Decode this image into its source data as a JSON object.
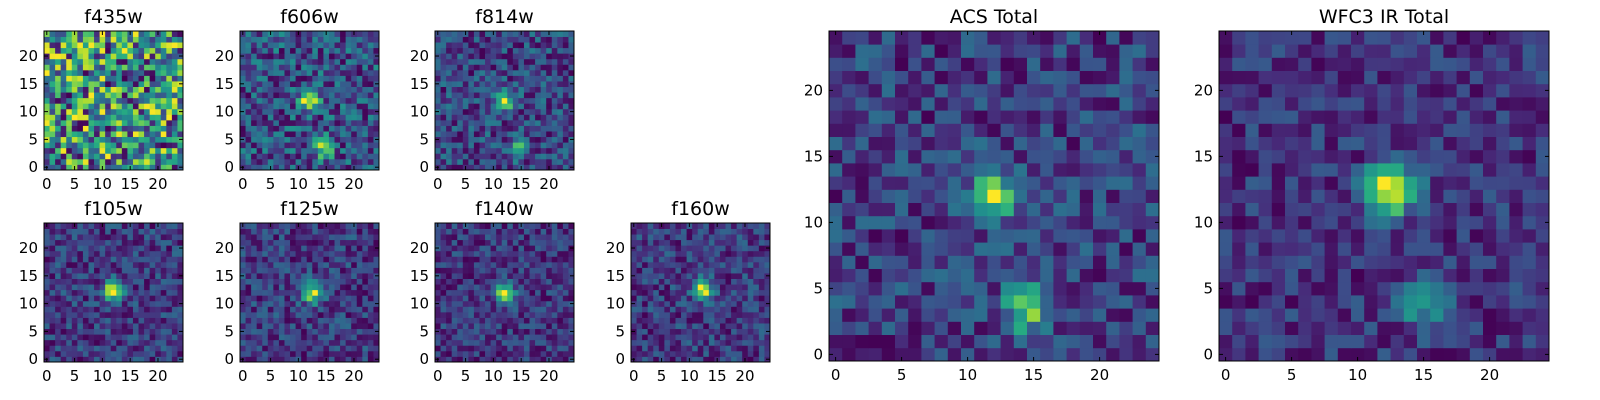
{
  "figure": {
    "colormap": "viridis",
    "panels_note": "seeded noise cutouts with central source"
  },
  "chart_data": [
    {
      "type": "heatmap",
      "title": "f435w",
      "grid": false,
      "xticks": [
        0,
        5,
        10,
        15,
        20
      ],
      "yticks": [
        0,
        5,
        10,
        15,
        20
      ],
      "xlim": [
        0,
        25
      ],
      "ylim": [
        0,
        25
      ],
      "size": 25,
      "sources": [],
      "noise": 0.9,
      "base": 0.7,
      "seed": 11
    },
    {
      "type": "heatmap",
      "title": "f606w",
      "grid": false,
      "xticks": [
        0,
        5,
        10,
        15,
        20
      ],
      "yticks": [
        0,
        5,
        10,
        15,
        20
      ],
      "xlim": [
        0,
        25
      ],
      "ylim": [
        0,
        25
      ],
      "size": 25,
      "sources": [
        {
          "x": 12,
          "y": 12,
          "amp": 1.0
        },
        {
          "x": 14.5,
          "y": 3.5,
          "amp": 0.75
        }
      ],
      "noise": 0.45,
      "base": 0.45,
      "seed": 23
    },
    {
      "type": "heatmap",
      "title": "f814w",
      "grid": false,
      "xticks": [
        0,
        5,
        10,
        15,
        20
      ],
      "yticks": [
        0,
        5,
        10,
        15,
        20
      ],
      "xlim": [
        0,
        25
      ],
      "ylim": [
        0,
        25
      ],
      "size": 25,
      "sources": [
        {
          "x": 12,
          "y": 12,
          "amp": 1.0
        },
        {
          "x": 14.5,
          "y": 3.5,
          "amp": 0.6
        }
      ],
      "noise": 0.45,
      "base": 0.45,
      "seed": 37
    },
    {
      "type": "heatmap",
      "title": "f105w",
      "grid": false,
      "xticks": [
        0,
        5,
        10,
        15,
        20
      ],
      "yticks": [
        0,
        5,
        10,
        15,
        20
      ],
      "xlim": [
        0,
        25
      ],
      "ylim": [
        0,
        25
      ],
      "size": 25,
      "sources": [
        {
          "x": 12,
          "y": 12.5,
          "amp": 1.0
        }
      ],
      "noise": 0.28,
      "base": 0.42,
      "seed": 41
    },
    {
      "type": "heatmap",
      "title": "f125w",
      "grid": false,
      "xticks": [
        0,
        5,
        10,
        15,
        20
      ],
      "yticks": [
        0,
        5,
        10,
        15,
        20
      ],
      "xlim": [
        0,
        25
      ],
      "ylim": [
        0,
        25
      ],
      "size": 25,
      "sources": [
        {
          "x": 12.5,
          "y": 12,
          "amp": 1.0
        }
      ],
      "noise": 0.32,
      "base": 0.45,
      "seed": 53
    },
    {
      "type": "heatmap",
      "title": "f140w",
      "grid": false,
      "xticks": [
        0,
        5,
        10,
        15,
        20
      ],
      "yticks": [
        0,
        5,
        10,
        15,
        20
      ],
      "xlim": [
        0,
        25
      ],
      "ylim": [
        0,
        25
      ],
      "size": 25,
      "sources": [
        {
          "x": 12,
          "y": 12,
          "amp": 1.0
        }
      ],
      "noise": 0.3,
      "base": 0.45,
      "seed": 67
    },
    {
      "type": "heatmap",
      "title": "f160w",
      "grid": false,
      "xticks": [
        0,
        5,
        10,
        15,
        20
      ],
      "yticks": [
        0,
        5,
        10,
        15,
        20
      ],
      "xlim": [
        0,
        25
      ],
      "ylim": [
        0,
        25
      ],
      "size": 25,
      "sources": [
        {
          "x": 12.5,
          "y": 12.5,
          "amp": 1.0
        }
      ],
      "noise": 0.3,
      "base": 0.38,
      "seed": 79
    },
    {
      "type": "heatmap",
      "title": "ACS Total",
      "grid": false,
      "xticks": [
        0,
        5,
        10,
        15,
        20
      ],
      "yticks": [
        0,
        5,
        10,
        15,
        20
      ],
      "xlim": [
        0,
        25
      ],
      "ylim": [
        0,
        25
      ],
      "size": 25,
      "sources": [
        {
          "x": 12,
          "y": 12,
          "amp": 1.0
        },
        {
          "x": 14.5,
          "y": 3.5,
          "amp": 0.85
        }
      ],
      "noise": 0.35,
      "base": 0.5,
      "seed": 97
    },
    {
      "type": "heatmap",
      "title": "WFC3 IR Total",
      "grid": false,
      "xticks": [
        0,
        5,
        10,
        15,
        20
      ],
      "yticks": [
        0,
        5,
        10,
        15,
        20
      ],
      "xlim": [
        0,
        25
      ],
      "ylim": [
        0,
        25
      ],
      "size": 25,
      "sources": [
        {
          "x": 12.5,
          "y": 12.5,
          "amp": 1.0
        },
        {
          "x": 15,
          "y": 4,
          "amp": 0.45
        }
      ],
      "noise": 0.2,
      "base": 0.35,
      "seed": 113
    }
  ]
}
